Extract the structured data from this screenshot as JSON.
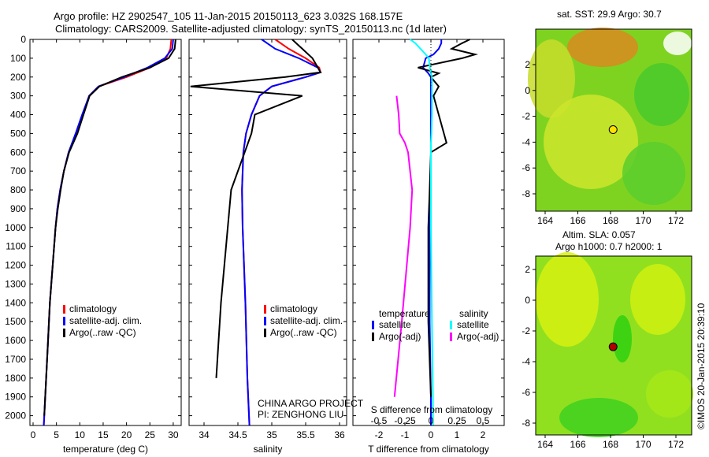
{
  "title_line1": "Argo profile: HZ 2902547_105 11-Jan-2015 20150113_623 3.032S 168.157E",
  "title_line2": "Climatology: CARS2009. Satellite-adjusted climatology: synTS_20150113.nc (1d later)",
  "colors": {
    "climatology": "#ff0000",
    "satellite": "#0000ff",
    "argo": "#000000",
    "sal_sat": "#00ffff",
    "sal_argo": "#ff00ff"
  },
  "chart_data": [
    {
      "type": "line",
      "xlabel": "temperature (deg C)",
      "xlim": [
        -2,
        31.5
      ],
      "xticks": [
        0,
        5,
        10,
        15,
        20,
        25,
        30
      ],
      "ylim": [
        2050,
        0
      ],
      "yticks": [
        0,
        100,
        200,
        300,
        400,
        500,
        600,
        700,
        800,
        900,
        1000,
        1100,
        1200,
        1300,
        1400,
        1500,
        1600,
        1700,
        1800,
        1900,
        2000
      ],
      "legend": [
        "climatology",
        "satellite-adj. clim.",
        "Argo(..raw -QC)"
      ],
      "depth": [
        0,
        50,
        100,
        150,
        200,
        250,
        300,
        400,
        500,
        600,
        700,
        800,
        900,
        1000,
        1200,
        1400,
        1600,
        1800,
        2000,
        2050
      ],
      "series": [
        {
          "name": "climatology",
          "values": [
            29.6,
            29.4,
            28.5,
            25,
            20,
            14,
            12,
            10.6,
            9.2,
            7.6,
            6.6,
            5.8,
            5.2,
            4.8,
            4.2,
            3.6,
            3.2,
            2.8,
            2.4,
            2.3
          ]
        },
        {
          "name": "satellite-adj. clim.",
          "values": [
            30,
            29.8,
            28.2,
            24.5,
            19.5,
            14,
            12,
            10.5,
            9.1,
            7.6,
            6.6,
            5.8,
            5.2,
            4.8,
            4.2,
            3.6,
            3.2,
            2.8,
            2.4,
            2.3
          ]
        },
        {
          "name": "Argo(..raw -QC)",
          "values": [
            30.5,
            30.3,
            29,
            25,
            19,
            14.2,
            12.1,
            10.8,
            9.5,
            7.7,
            6.6,
            5.9,
            5.3,
            4.8,
            4.2,
            3.6,
            3.2,
            2.8,
            2.4,
            null
          ]
        }
      ]
    },
    {
      "type": "line",
      "xlabel": "salinity",
      "xlim": [
        33.78,
        36.1
      ],
      "xticks": [
        34,
        34.5,
        35,
        35.5,
        36
      ],
      "ylim": [
        2050,
        0
      ],
      "legend": [
        "climatology",
        "satellite-adj. clim.",
        "Argo(..raw -QC)"
      ],
      "depth": [
        0,
        50,
        100,
        150,
        175,
        200,
        250,
        300,
        400,
        500,
        600,
        800,
        1000,
        1400,
        1800,
        2050
      ],
      "series": [
        {
          "name": "climatology",
          "values": [
            35.05,
            35.25,
            35.5,
            35.7,
            35.72,
            35.5,
            35.0,
            34.82,
            34.7,
            34.62,
            34.58,
            34.56,
            34.57,
            34.61,
            34.64,
            34.67
          ]
        },
        {
          "name": "satellite-adj. clim.",
          "values": [
            34.85,
            35.05,
            35.4,
            35.68,
            35.72,
            35.5,
            35.0,
            34.82,
            34.7,
            34.62,
            34.58,
            34.56,
            34.57,
            34.61,
            34.64,
            34.67
          ]
        },
        {
          "name": "Argo(..raw -QC)",
          "values": [
            35.3,
            35.45,
            35.6,
            35.68,
            35.72,
            35.2,
            33.8,
            35.45,
            34.75,
            34.7,
            34.6,
            34.4,
            34.35,
            34.25,
            34.18,
            null
          ]
        }
      ]
    },
    {
      "type": "line",
      "xlabel": "T difference from climatology",
      "x2label": "S difference from climatology",
      "xlim": [
        -2.9,
        2.9
      ],
      "xticks": [
        -2,
        -1,
        0,
        1,
        2
      ],
      "x2ticks": [
        -0.5,
        -0.25,
        0,
        0.25,
        0.5
      ],
      "ylim": [
        2050,
        0
      ],
      "legend_titles": [
        "temperature",
        "salinity"
      ],
      "legend": [
        "satellite",
        "Argo(-adj)",
        "satellite",
        "Argo(-adj)"
      ],
      "depth": [
        0,
        20,
        50,
        80,
        100,
        150,
        180,
        200,
        250,
        300,
        400,
        500,
        550,
        600,
        800,
        1000,
        1500,
        1900,
        2050
      ],
      "series": [
        {
          "name": "T satellite",
          "values": [
            0.4,
            0.4,
            0.3,
            0.1,
            -0.2,
            -0.3,
            -0.1,
            0,
            0,
            0,
            0,
            0,
            0,
            0,
            0,
            -0.05,
            -0.05,
            0,
            0
          ]
        },
        {
          "name": "T Argo(-adj)",
          "values": [
            1.5,
            1.2,
            0.8,
            1.7,
            1.2,
            -0.5,
            0.3,
            0,
            0.3,
            0.1,
            0.3,
            0.5,
            0.6,
            0,
            -0.05,
            -0.1,
            -0.1,
            0,
            null
          ]
        },
        {
          "name": "S satellite (scaled)",
          "values": [
            -0.2,
            -0.15,
            -0.1,
            -0.05,
            -0.02,
            -0.01,
            0,
            0.01,
            0.01,
            0.01,
            0.01,
            0.005,
            0,
            0,
            0,
            0,
            0.01,
            0.02,
            0.02
          ]
        },
        {
          "name": "S Argo(-adj)",
          "values": [
            null,
            null,
            null,
            null,
            null,
            null,
            null,
            null,
            null,
            -0.33,
            -0.31,
            -0.3,
            -0.25,
            -0.22,
            -0.18,
            -0.2,
            -0.28,
            -0.35,
            null
          ]
        }
      ]
    }
  ],
  "footer": {
    "line1": "CHINA ARGO PROJECT",
    "line2": "PI: ZENGHONG LIU"
  },
  "map1": {
    "title": "sat. SST: 29.9 Argo: 30.7",
    "lon_ticks": [
      "164",
      "166",
      "168",
      "170",
      "172"
    ],
    "lat_ticks": [
      "2",
      "0",
      "-2",
      "-4",
      "-6",
      "-8"
    ],
    "lon": 168.157,
    "lat": -3.032
  },
  "map2": {
    "title1": "Altim. SLA: 0.057",
    "title2": "Argo h1000: 0.7 h2000: 1",
    "lon_ticks": [
      "164",
      "166",
      "168",
      "170",
      "172"
    ],
    "lat_ticks": [
      "2",
      "0",
      "-2",
      "-4",
      "-6",
      "-8"
    ],
    "lon": 168.157,
    "lat": -3.032
  },
  "stamp": "©IMOS 20-Jan-2015 20:39:10"
}
